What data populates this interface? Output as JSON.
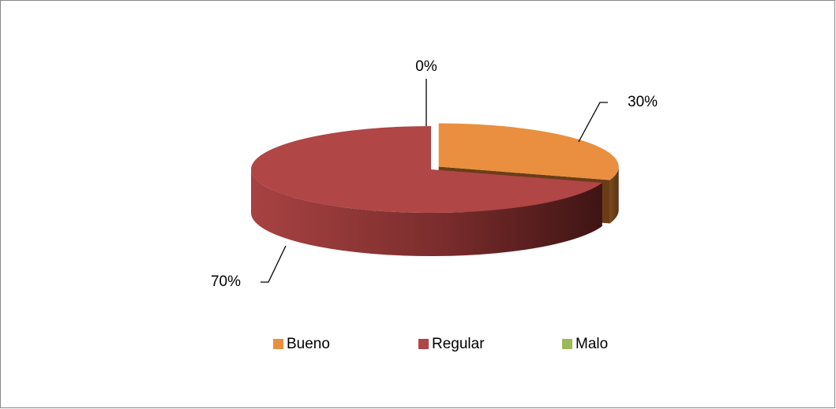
{
  "chart_data": {
    "type": "pie",
    "categories": [
      "Bueno",
      "Regular",
      "Malo"
    ],
    "values": [
      30,
      70,
      0
    ],
    "value_labels": [
      "30%",
      "70%",
      "0%"
    ],
    "colors": [
      "#e98f3f",
      "#b04646",
      "#9bbb59"
    ],
    "legend": "bottom"
  }
}
